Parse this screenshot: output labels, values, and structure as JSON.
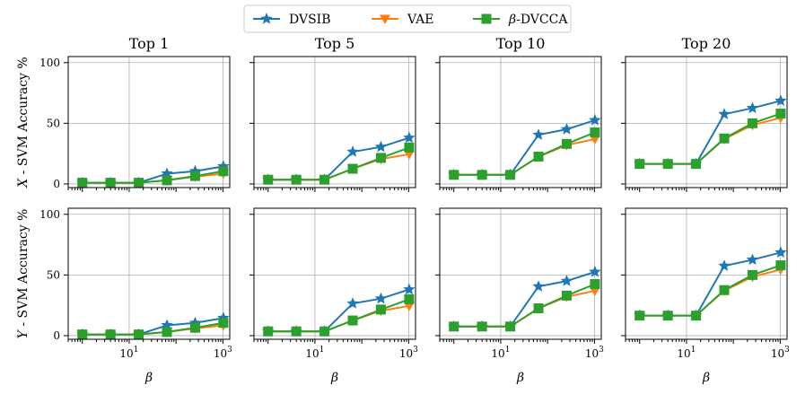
{
  "chart_data": {
    "type": "line",
    "legend": {
      "position": "top-center",
      "entries": [
        {
          "name": "DVSIB",
          "color": "#1f77b4",
          "marker": "star"
        },
        {
          "name": "VAE",
          "color": "#ff7f0e",
          "marker": "triangle-down"
        },
        {
          "name": "β-DVCCA",
          "color": "#2ca02c",
          "marker": "square"
        }
      ]
    },
    "x": [
      1,
      4,
      16,
      64,
      256,
      1024
    ],
    "xscale": "log",
    "xticks": [
      {
        "value": 10,
        "label": "10",
        "exp": "1"
      },
      {
        "value": 1000,
        "label": "10",
        "exp": "3"
      }
    ],
    "xlabel": "β",
    "ylim": [
      -3,
      105
    ],
    "yticks": [
      0,
      50,
      100
    ],
    "grid": true,
    "rows": [
      {
        "ylabel_var": "X",
        "ylabel_rest": " - SVM Accuracy %"
      },
      {
        "ylabel_var": "Y",
        "ylabel_rest": " - SVM Accuracy %"
      }
    ],
    "columns": [
      {
        "title": "Top 1",
        "series": [
          {
            "name": "DVSIB",
            "values": [
              1,
              1,
              1,
              8.5,
              10.5,
              14.5
            ]
          },
          {
            "name": "VAE",
            "values": [
              1,
              1,
              1,
              3,
              6,
              8.5
            ]
          },
          {
            "name": "β-DVCCA",
            "values": [
              1,
              1,
              1,
              3,
              6.5,
              10.5
            ]
          }
        ]
      },
      {
        "title": "Top 5",
        "series": [
          {
            "name": "DVSIB",
            "values": [
              3.5,
              3.5,
              3.5,
              26.5,
              30.5,
              38
            ]
          },
          {
            "name": "VAE",
            "values": [
              3.5,
              3.5,
              3.5,
              12.5,
              20.5,
              24.5
            ]
          },
          {
            "name": "β-DVCCA",
            "values": [
              3.5,
              3.5,
              3.5,
              12.5,
              21.5,
              30
            ]
          }
        ]
      },
      {
        "title": "Top 10",
        "series": [
          {
            "name": "DVSIB",
            "values": [
              7.5,
              7.5,
              7.5,
              40.5,
              45,
              52.5
            ]
          },
          {
            "name": "VAE",
            "values": [
              7.5,
              7.5,
              7.5,
              22.5,
              32,
              37
            ]
          },
          {
            "name": "β-DVCCA",
            "values": [
              7.5,
              7.5,
              7.5,
              22.5,
              33,
              42.5
            ]
          }
        ]
      },
      {
        "title": "Top 20",
        "series": [
          {
            "name": "DVSIB",
            "values": [
              16.5,
              16.5,
              16.5,
              57.5,
              62.5,
              68.5
            ]
          },
          {
            "name": "VAE",
            "values": [
              16.5,
              16.5,
              16.5,
              37,
              48.5,
              54.5
            ]
          },
          {
            "name": "β-DVCCA",
            "values": [
              16.5,
              16.5,
              16.5,
              37.5,
              50,
              58
            ]
          }
        ]
      }
    ]
  }
}
